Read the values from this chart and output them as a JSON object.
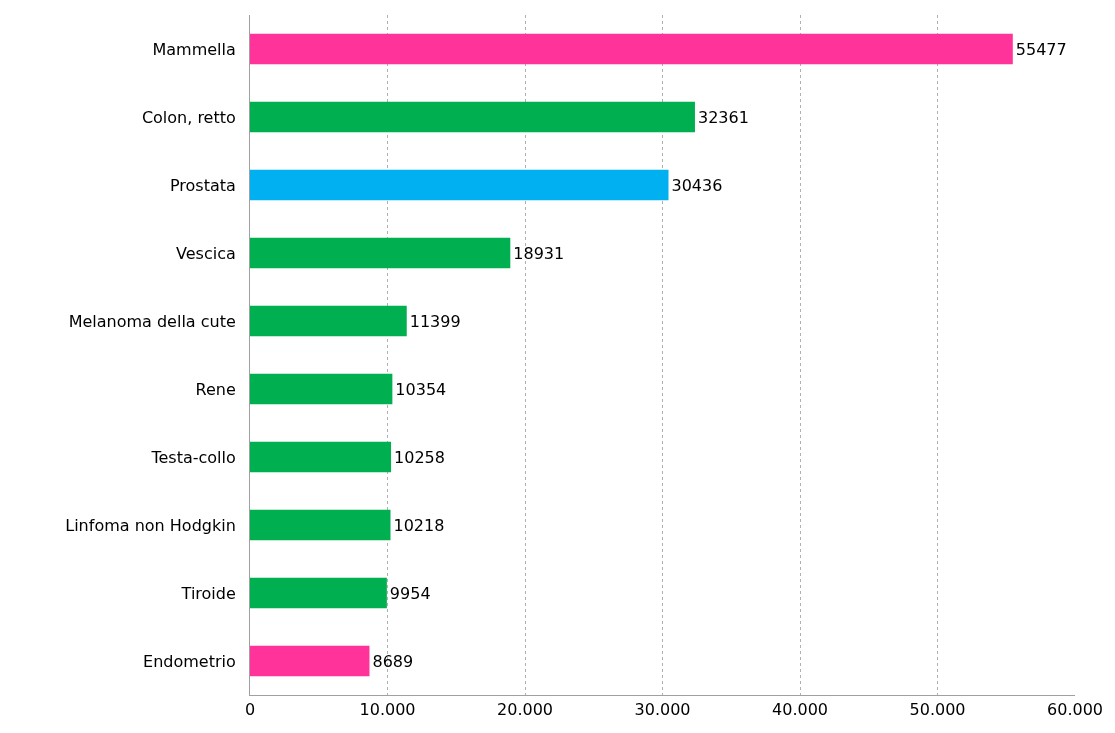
{
  "chart_data": {
    "type": "bar",
    "orientation": "horizontal",
    "categories": [
      "Mammella",
      "Colon, retto",
      "Prostata",
      "Vescica",
      "Melanoma della cute",
      "Rene",
      "Testa-collo",
      "Linfoma non Hodgkin",
      "Tiroide",
      "Endometrio"
    ],
    "values": [
      55477,
      32361,
      30436,
      18931,
      11399,
      10354,
      10258,
      10218,
      9954,
      8689
    ],
    "colors": [
      "#ff3399",
      "#00b050",
      "#00b0f0",
      "#00b050",
      "#00b050",
      "#00b050",
      "#00b050",
      "#00b050",
      "#00b050",
      "#ff3399"
    ],
    "xlim": [
      0,
      60000
    ],
    "xticks": [
      0,
      {
        "value": 10000,
        "label": "10.000"
      },
      {
        "value": 20000,
        "label": "20.000"
      },
      {
        "value": 30000,
        "label": "30.000"
      },
      {
        "value": 40000,
        "label": "40.000"
      },
      {
        "value": 50000,
        "label": "50.000"
      },
      {
        "value": 60000,
        "label": "60.000"
      }
    ],
    "grid": "x",
    "data_labels": true
  }
}
